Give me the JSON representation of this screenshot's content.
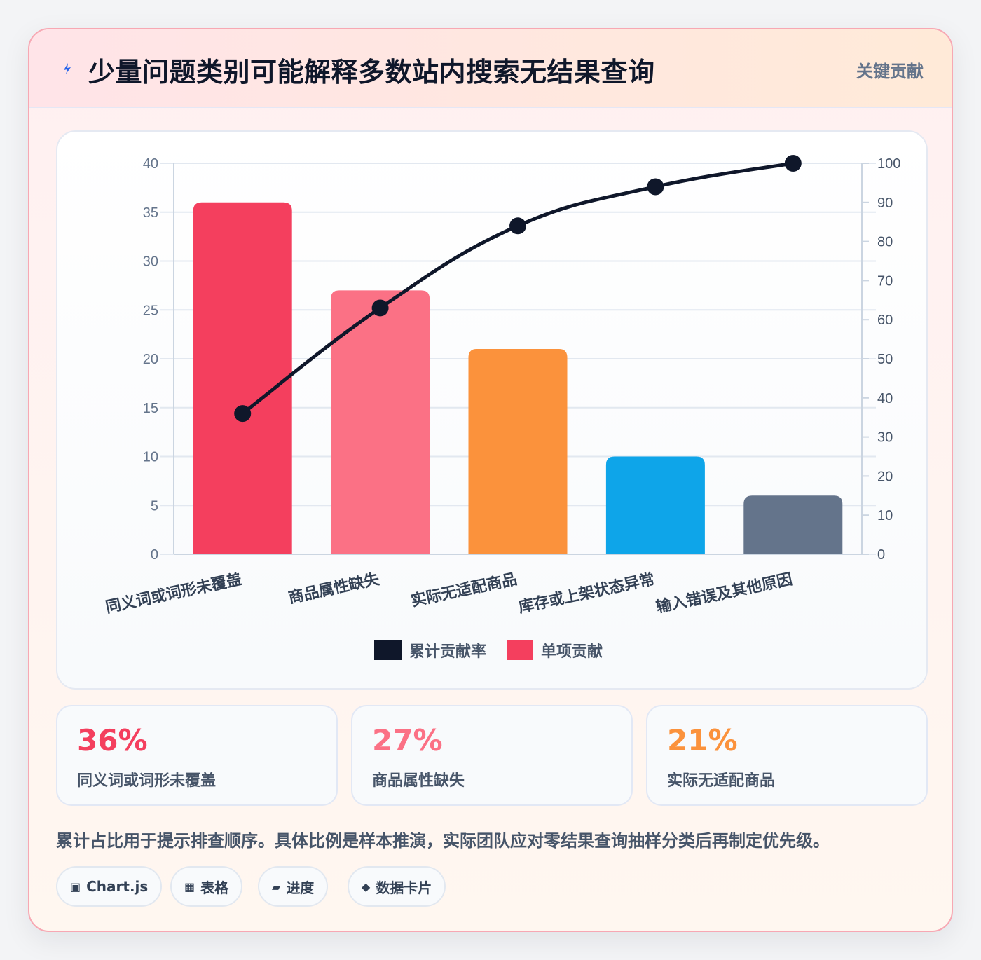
{
  "header": {
    "title": "少量问题类别可能解释多数站内搜索无结果查询",
    "tag": "关键贡献",
    "icon": "lightning-icon"
  },
  "chart_data": {
    "type": "bar",
    "categories": [
      "同义词或词形未覆盖",
      "商品属性缺失",
      "实际无适配商品",
      "库存或上架状态异常",
      "输入错误及其他原因"
    ],
    "series": [
      {
        "name": "单项贡献",
        "type": "bar",
        "axis": "left",
        "values": [
          36,
          27,
          21,
          10,
          6
        ],
        "colors": [
          "#f43f5e",
          "#fb7185",
          "#fb923c",
          "#0ea5e9",
          "#64748b"
        ]
      },
      {
        "name": "累计贡献率",
        "type": "line",
        "axis": "right",
        "values": [
          36,
          63,
          84,
          94,
          100
        ],
        "color": "#0f172a"
      }
    ],
    "ylim": [
      0,
      40
    ],
    "yticks": [
      0,
      5,
      10,
      15,
      20,
      25,
      30,
      35,
      40
    ],
    "y2lim": [
      0,
      100
    ],
    "y2ticks": [
      0,
      10,
      20,
      30,
      40,
      50,
      60,
      70,
      80,
      90,
      100
    ],
    "legend": [
      "累计贡献率",
      "单项贡献"
    ],
    "legend_position": "bottom",
    "grid": true
  },
  "stats": [
    {
      "value": "36%",
      "label": "同义词或词形未覆盖",
      "color": "#f43f5e"
    },
    {
      "value": "27%",
      "label": "商品属性缺失",
      "color": "#fb7185"
    },
    {
      "value": "21%",
      "label": "实际无适配商品",
      "color": "#fb923c"
    }
  ],
  "note": "累计占比用于提示排查顺序。具体比例是样本推演，实际团队应对零结果查询抽样分类后再制定优先级。",
  "chips": [
    {
      "icon": "▣",
      "label": "Chart.js"
    },
    {
      "icon": "▦",
      "label": "表格"
    },
    {
      "icon": "▰",
      "label": "进度"
    },
    {
      "icon": "◆",
      "label": "数据卡片"
    }
  ]
}
